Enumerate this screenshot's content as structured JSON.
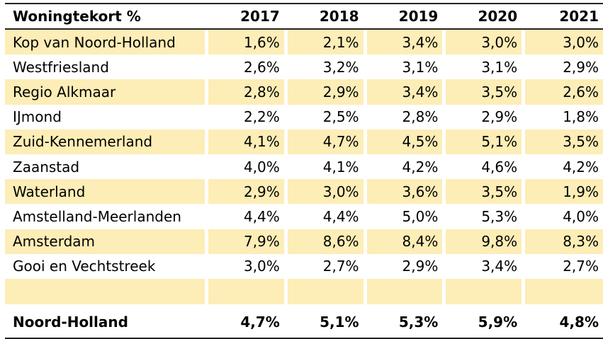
{
  "table": {
    "headers": [
      "Woningtekort %",
      "2017",
      "2018",
      "2019",
      "2020",
      "2021"
    ],
    "rows": [
      {
        "name": "Kop van Noord-Holland",
        "values": [
          "1,6%",
          "2,1%",
          "3,4%",
          "3,0%",
          "3,0%"
        ]
      },
      {
        "name": "Westfriesland",
        "values": [
          "2,6%",
          "3,2%",
          "3,1%",
          "3,1%",
          "2,9%"
        ]
      },
      {
        "name": "Regio Alkmaar",
        "values": [
          "2,8%",
          "2,9%",
          "3,4%",
          "3,5%",
          "2,6%"
        ]
      },
      {
        "name": "IJmond",
        "values": [
          "2,2%",
          "2,5%",
          "2,8%",
          "2,9%",
          "1,8%"
        ]
      },
      {
        "name": "Zuid-Kennemerland",
        "values": [
          "4,1%",
          "4,7%",
          "4,5%",
          "5,1%",
          "3,5%"
        ]
      },
      {
        "name": "Zaanstad",
        "values": [
          "4,0%",
          "4,1%",
          "4,2%",
          "4,6%",
          "4,2%"
        ]
      },
      {
        "name": "Waterland",
        "values": [
          "2,9%",
          "3,0%",
          "3,6%",
          "3,5%",
          "1,9%"
        ]
      },
      {
        "name": "Amstelland-Meerlanden",
        "values": [
          "4,4%",
          "4,4%",
          "5,0%",
          "5,3%",
          "4,0%"
        ]
      },
      {
        "name": "Amsterdam",
        "values": [
          "7,9%",
          "8,6%",
          "8,4%",
          "9,8%",
          "8,3%"
        ]
      },
      {
        "name": "Gooi en Vechtstreek",
        "values": [
          "3,0%",
          "2,7%",
          "2,9%",
          "3,4%",
          "2,7%"
        ]
      }
    ],
    "total": {
      "name": "Noord-Holland",
      "values": [
        "4,7%",
        "5,1%",
        "5,3%",
        "5,9%",
        "4,8%"
      ]
    }
  },
  "colors": {
    "shade": "#fdedb6",
    "rule": "#222222"
  }
}
